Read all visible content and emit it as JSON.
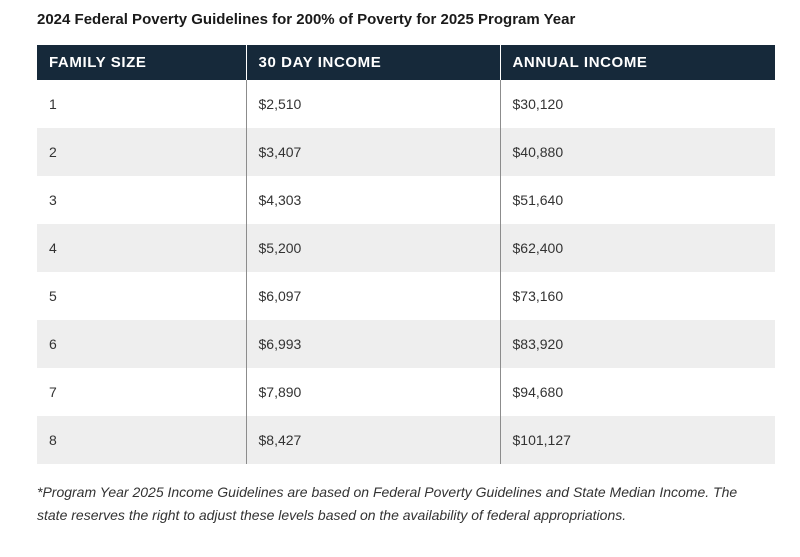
{
  "title": "2024 Federal Poverty Guidelines for 200% of Poverty for 2025 Program Year",
  "table": {
    "headers": [
      "FAMILY SIZE",
      "30 DAY INCOME",
      "ANNUAL INCOME"
    ],
    "rows": [
      [
        "1",
        "$2,510",
        "$30,120"
      ],
      [
        "2",
        "$3,407",
        "$40,880"
      ],
      [
        "3",
        "$4,303",
        "$51,640"
      ],
      [
        "4",
        "$5,200",
        "$62,400"
      ],
      [
        "5",
        "$6,097",
        "$73,160"
      ],
      [
        "6",
        "$6,993",
        "$83,920"
      ],
      [
        "7",
        "$7,890",
        "$94,680"
      ],
      [
        "8",
        "$8,427",
        "$101,127"
      ]
    ]
  },
  "footnote": " *Program Year 2025 Income Guidelines are based on Federal Poverty Guidelines and State Median Income. The state reserves the right to adjust these levels based on the availability of federal appropriations.",
  "colors": {
    "header_bg": "#16293a",
    "header_text": "#ffffff",
    "stripe_bg": "#eeeeee",
    "row_bg": "#ffffff"
  }
}
